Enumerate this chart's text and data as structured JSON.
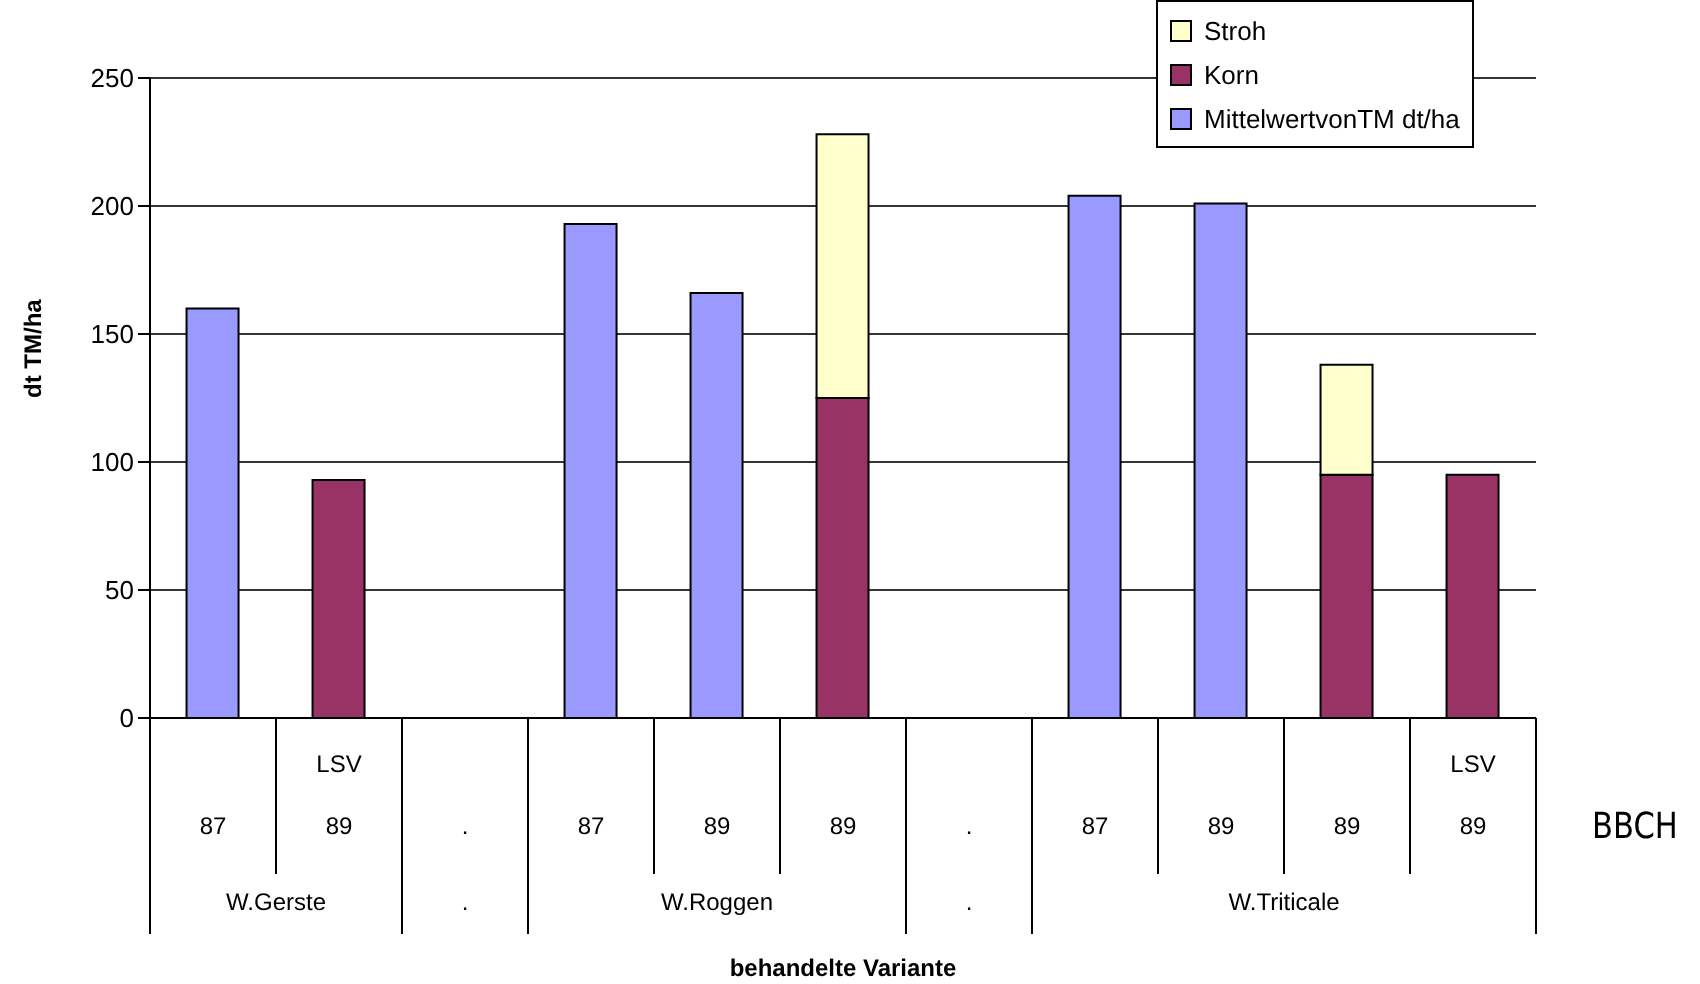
{
  "chart_data": {
    "type": "bar",
    "stacked": true,
    "categories": [
      "87",
      "LSV 89",
      ".",
      "87",
      "89",
      "89",
      ".",
      "87",
      "89",
      "89",
      "LSV 89"
    ],
    "series": [
      {
        "name": "MittelwertvonTM dt/ha",
        "color": "#9999ff",
        "values": [
          160,
          null,
          null,
          193,
          166,
          null,
          null,
          204,
          201,
          null,
          null
        ]
      },
      {
        "name": "Korn",
        "color": "#993366",
        "values": [
          null,
          93,
          null,
          null,
          null,
          125,
          null,
          null,
          null,
          95,
          95
        ]
      },
      {
        "name": "Stroh",
        "color": "#ffffcc",
        "values": [
          null,
          null,
          null,
          null,
          null,
          103,
          null,
          null,
          null,
          43,
          null
        ]
      }
    ],
    "ylim": [
      0,
      250
    ],
    "yticks": [
      0,
      50,
      100,
      150,
      200,
      250
    ],
    "grid": "y",
    "legend": "top right",
    "ylabel": "dt TM/ha",
    "xlabel": "behandelte Variante",
    "annotations": [
      "W.Gerste",
      ".",
      "W.Roggen",
      ".",
      "W.Triticale",
      "BBCH"
    ]
  }
}
